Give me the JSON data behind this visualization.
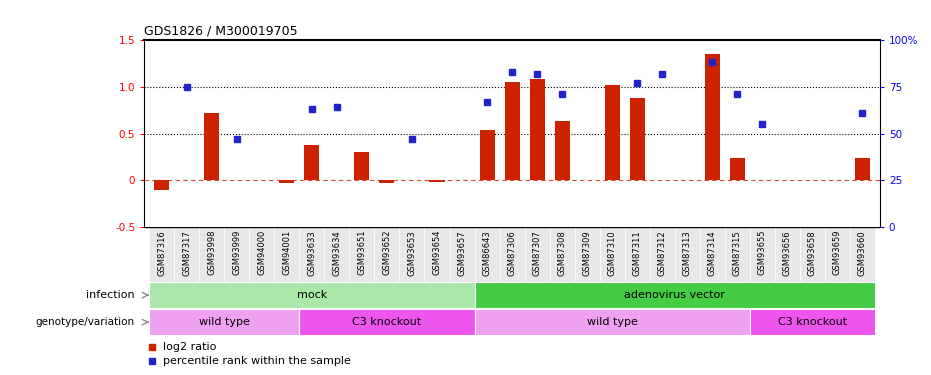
{
  "title": "GDS1826 / M300019705",
  "samples": [
    "GSM87316",
    "GSM87317",
    "GSM93998",
    "GSM93999",
    "GSM94000",
    "GSM94001",
    "GSM93633",
    "GSM93634",
    "GSM93651",
    "GSM93652",
    "GSM93653",
    "GSM93654",
    "GSM93657",
    "GSM86643",
    "GSM87306",
    "GSM87307",
    "GSM87308",
    "GSM87309",
    "GSM87310",
    "GSM87311",
    "GSM87312",
    "GSM87313",
    "GSM87314",
    "GSM87315",
    "GSM93655",
    "GSM93656",
    "GSM93658",
    "GSM93659",
    "GSM93660"
  ],
  "log2_ratio": [
    -0.1,
    0.0,
    0.72,
    0.0,
    0.0,
    -0.03,
    0.38,
    0.0,
    0.3,
    -0.03,
    0.0,
    -0.02,
    0.0,
    0.54,
    1.05,
    1.08,
    0.63,
    0.0,
    1.02,
    0.88,
    0.0,
    0.0,
    1.35,
    0.24,
    0.0,
    0.0,
    0.0,
    0.0,
    0.24
  ],
  "percentile_pct": [
    null,
    75,
    null,
    47,
    null,
    null,
    63,
    64,
    null,
    null,
    47,
    null,
    null,
    67,
    83,
    82,
    71,
    null,
    null,
    77,
    82,
    null,
    88,
    71,
    55,
    null,
    null,
    null,
    61
  ],
  "infection_groups": [
    {
      "label": "mock",
      "start": 0,
      "end": 13,
      "color": "#aae8aa"
    },
    {
      "label": "adenovirus vector",
      "start": 13,
      "end": 29,
      "color": "#44cc44"
    }
  ],
  "genotype_groups": [
    {
      "label": "wild type",
      "start": 0,
      "end": 6,
      "color": "#f0a0f0"
    },
    {
      "label": "C3 knockout",
      "start": 6,
      "end": 13,
      "color": "#ee55ee"
    },
    {
      "label": "wild type",
      "start": 13,
      "end": 24,
      "color": "#f0a0f0"
    },
    {
      "label": "C3 knockout",
      "start": 24,
      "end": 29,
      "color": "#ee55ee"
    }
  ],
  "ylim_left": [
    -0.5,
    1.5
  ],
  "ylim_right": [
    0,
    100
  ],
  "yticks_left": [
    -0.5,
    0.0,
    0.5,
    1.0,
    1.5
  ],
  "yticks_right": [
    0,
    25,
    50,
    75,
    100
  ],
  "ytick_labels_left": [
    "-0.5",
    "0",
    "0.5",
    "1.0",
    "1.5"
  ],
  "ytick_labels_right": [
    "0",
    "25",
    "50",
    "75",
    "100%"
  ],
  "hlines_dotted": [
    0.5,
    1.0
  ],
  "hline_dashed": 0.0,
  "bar_color": "#cc2200",
  "dot_color": "#2222cc",
  "label_log2": "log2 ratio",
  "label_percentile": "percentile rank within the sample",
  "infection_label": "infection",
  "genotype_label": "genotype/variation"
}
